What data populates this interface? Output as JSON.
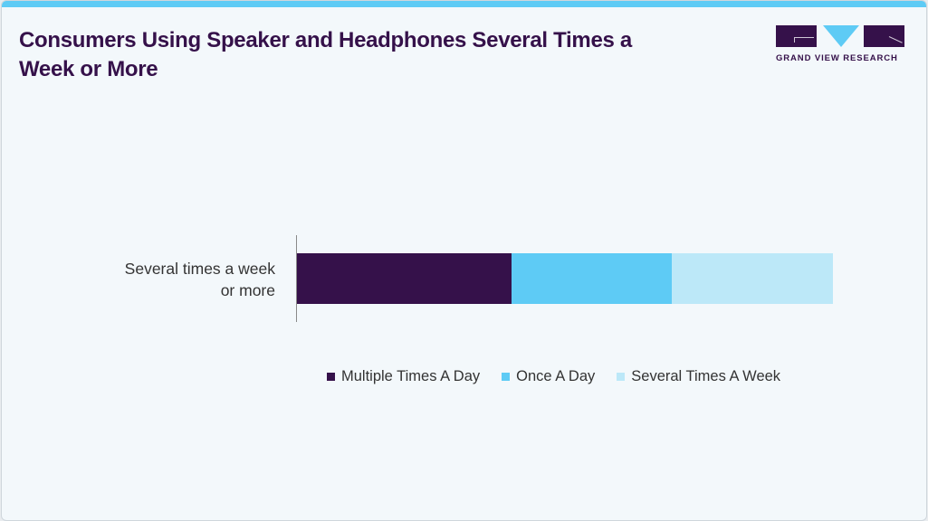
{
  "header": {
    "title": "Consumers Using Speaker and Headphones Several Times a Week or More",
    "accent_color": "#5ecbf5"
  },
  "logo": {
    "text": "GRAND VIEW RESEARCH",
    "colors": [
      "#35114a",
      "#5ecbf5"
    ]
  },
  "chart_data": {
    "type": "bar",
    "orientation": "horizontal",
    "stacked": true,
    "title": "Consumers Using Speaker and Headphones Several Times a Week or More",
    "categories": [
      "Several times a week or more"
    ],
    "series": [
      {
        "name": "Multiple Times A Day",
        "values": [
          40
        ],
        "color": "#35114a"
      },
      {
        "name": "Once A Day",
        "values": [
          30
        ],
        "color": "#5ecbf5"
      },
      {
        "name": "Several Times A Week",
        "values": [
          30
        ],
        "color": "#bce8f8"
      }
    ],
    "xlabel": "",
    "ylabel": "",
    "xlim": [
      0,
      100
    ],
    "grid": false,
    "legend_position": "bottom",
    "units": "percent (estimated from bar proportions; no axis shown)"
  },
  "chart": {
    "category_label_line1": "Several times a week",
    "category_label_line2": "or more",
    "legend": [
      {
        "label": "Multiple Times A Day"
      },
      {
        "label": "Once A Day"
      },
      {
        "label": "Several Times A Week"
      }
    ]
  }
}
